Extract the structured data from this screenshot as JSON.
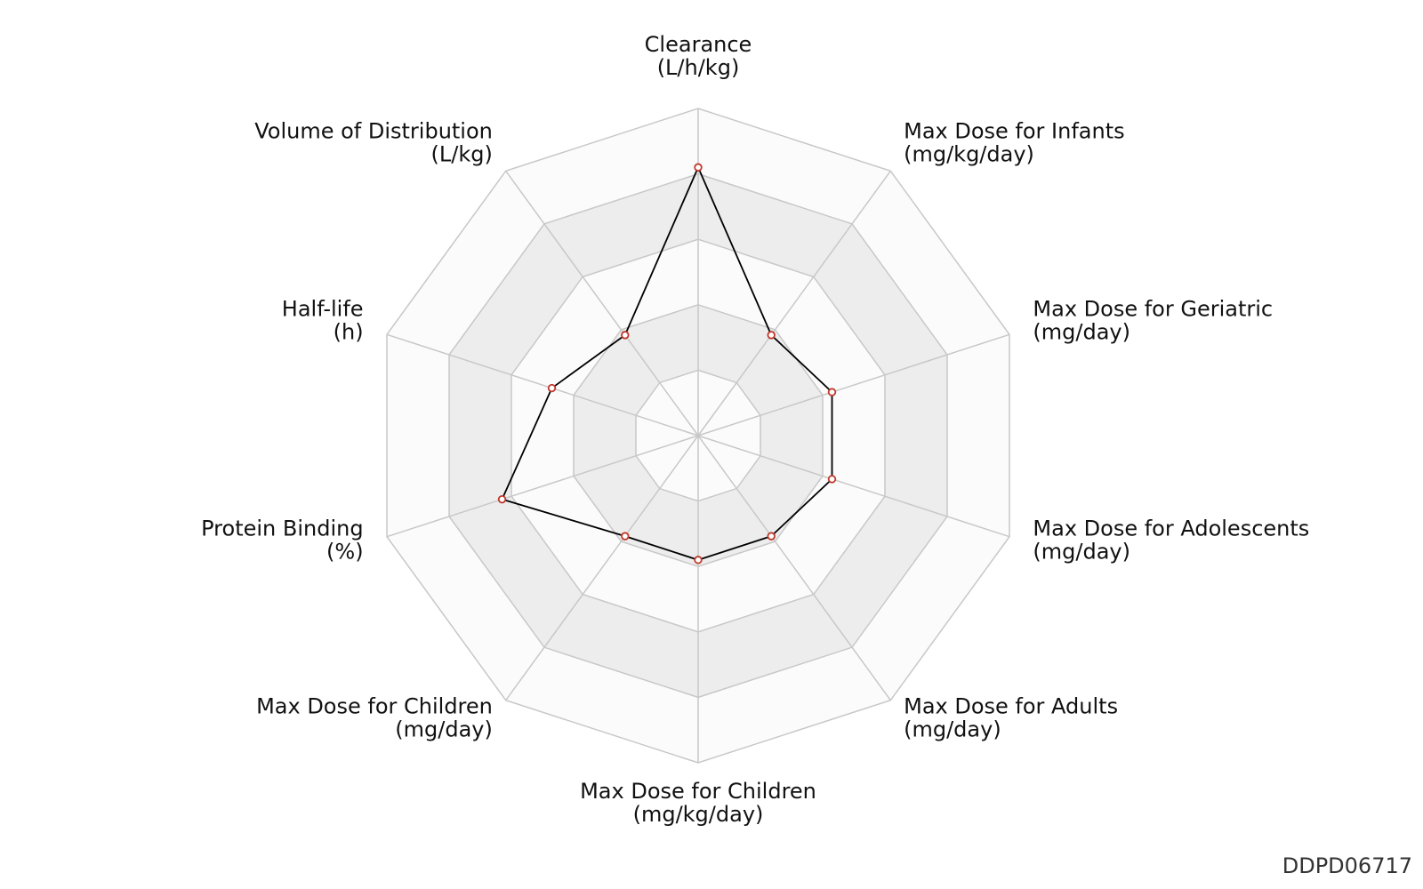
{
  "chart_data": {
    "type": "radar",
    "axes": [
      {
        "name": "Clearance",
        "unit": "(L/h/kg)"
      },
      {
        "name": "Max Dose for Infants",
        "unit": "(mg/kg/day)"
      },
      {
        "name": "Max Dose for Geriatric",
        "unit": "(mg/day)"
      },
      {
        "name": "Max Dose for Adolescents",
        "unit": "(mg/day)"
      },
      {
        "name": "Max Dose for Adults",
        "unit": "(mg/day)"
      },
      {
        "name": "Max Dose for Children",
        "unit": "(mg/kg/day)"
      },
      {
        "name": "Max Dose for Children",
        "unit": "(mg/day)"
      },
      {
        "name": "Protein Binding",
        "unit": "(%)"
      },
      {
        "name": "Half-life",
        "unit": "(h)"
      },
      {
        "name": "Volume of Distribution",
        "unit": "(L/kg)"
      }
    ],
    "rings": 5,
    "range": [
      0,
      1
    ],
    "series": [
      {
        "values": [
          0.82,
          0.38,
          0.43,
          0.43,
          0.38,
          0.38,
          0.38,
          0.63,
          0.47,
          0.38
        ]
      }
    ],
    "colors": {
      "line": "#000000",
      "marker_edge": "#c0392b",
      "marker_fill": "#ffffff",
      "band_light": "#fbfbfb",
      "band_dark": "#ededed",
      "grid": "#c8c8c8"
    }
  },
  "chart_id": "DDPD06717"
}
